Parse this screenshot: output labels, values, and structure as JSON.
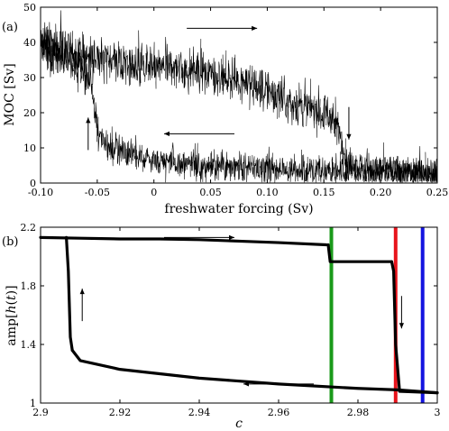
{
  "chart_data": [
    {
      "panel_label": "(a)",
      "type": "line",
      "xlabel": "freshwater forcing (Sv)",
      "ylabel": "MOC [Sv]",
      "xlim": [
        -0.1,
        0.25
      ],
      "ylim": [
        0,
        50
      ],
      "xticks": [
        -0.1,
        -0.05,
        0,
        0.05,
        0.1,
        0.15,
        0.2,
        0.25
      ],
      "xtick_labels": [
        "-0.10",
        "-0.05",
        "0",
        "0.05",
        "0.10",
        "0.15",
        "0.20",
        "0.25"
      ],
      "yticks": [
        0,
        10,
        20,
        30,
        40,
        50
      ],
      "ytick_labels": [
        "0",
        "10",
        "20",
        "30",
        "40",
        "50"
      ],
      "grid": false,
      "series": [
        {
          "x": [
            -0.1,
            -0.08,
            -0.06,
            -0.04,
            -0.02,
            0,
            0.02,
            0.04,
            0.06,
            0.08,
            0.09,
            0.1,
            0.11,
            0.12,
            0.13,
            0.14,
            0.15,
            0.16,
            0.165
          ],
          "y": [
            40,
            37.5,
            36,
            35,
            33.5,
            33,
            32.5,
            31.5,
            30.5,
            29,
            27.5,
            26,
            24.5,
            23,
            22,
            21,
            20,
            18,
            13
          ]
        },
        {
          "x": [
            0.165,
            0.17,
            0.18,
            0.2,
            0.22,
            0.25
          ],
          "y": [
            13,
            6,
            4.5,
            3.8,
            3.2,
            2.5
          ]
        },
        {
          "x": [
            0.25,
            0.2,
            0.15,
            0.1,
            0.05,
            0,
            -0.02,
            -0.04,
            -0.05
          ],
          "y": [
            2.5,
            3,
            3.5,
            4,
            5,
            6.5,
            8,
            11,
            15
          ]
        },
        {
          "x": [
            -0.05,
            -0.052,
            -0.055,
            -0.06,
            -0.07,
            -0.08,
            -0.09,
            -0.1
          ],
          "y": [
            15,
            22,
            29,
            31,
            34,
            36,
            38,
            40
          ]
        }
      ],
      "annotations": [
        {
          "type": "arrow",
          "direction": "right",
          "x": 0.06,
          "y": 44
        },
        {
          "type": "arrow",
          "direction": "down",
          "x": 0.172,
          "y": 17
        },
        {
          "type": "arrow",
          "direction": "left",
          "x": 0.04,
          "y": 14
        },
        {
          "type": "arrow",
          "direction": "up",
          "x": -0.058,
          "y": 14
        }
      ]
    },
    {
      "panel_label": "(b)",
      "type": "line",
      "xlabel": "c",
      "ylabel_prefix": "amp[",
      "ylabel_var": "h",
      "ylabel_open": "(",
      "ylabel_arg": "t",
      "ylabel_close": ")]",
      "xlim": [
        2.9,
        3.0
      ],
      "ylim": [
        1.0,
        2.2
      ],
      "xticks": [
        2.9,
        2.92,
        2.94,
        2.96,
        2.98,
        3.0
      ],
      "xtick_labels": [
        "2.9",
        "2.92",
        "2.94",
        "2.96",
        "2.98",
        "3"
      ],
      "yticks": [
        1.0,
        1.4,
        1.8,
        2.2
      ],
      "ytick_labels": [
        "1",
        "1.4",
        "1.8",
        "2.2"
      ],
      "grid": false,
      "series": [
        {
          "x": [
            2.9,
            2.91,
            2.92,
            2.93,
            2.94,
            2.95,
            2.96,
            2.972
          ],
          "y": [
            2.13,
            2.125,
            2.12,
            2.12,
            2.115,
            2.105,
            2.095,
            2.08
          ]
        },
        {
          "x": [
            2.9725,
            2.973,
            2.98,
            2.985,
            2.9885
          ],
          "y": [
            2.08,
            1.965,
            1.965,
            1.965,
            1.965
          ]
        },
        {
          "x": [
            2.9885,
            2.989,
            2.9895,
            2.9905,
            2.995,
            3.0
          ],
          "y": [
            1.965,
            1.9,
            1.4,
            1.08,
            1.075,
            1.07
          ]
        },
        {
          "x": [
            3.0,
            2.99,
            2.98,
            2.96,
            2.94,
            2.92,
            2.91,
            2.908
          ],
          "y": [
            1.07,
            1.09,
            1.1,
            1.13,
            1.17,
            1.23,
            1.29,
            1.36
          ]
        },
        {
          "x": [
            2.908,
            2.9075,
            2.907,
            2.9065
          ],
          "y": [
            1.36,
            1.45,
            1.9,
            2.13
          ]
        }
      ],
      "vertical_lines": [
        {
          "x": 2.9733,
          "color": "#1a9a1a"
        },
        {
          "x": 2.9895,
          "color": "#e8141c"
        },
        {
          "x": 2.9963,
          "color": "#1414e0"
        }
      ],
      "annotations": [
        {
          "type": "arrow",
          "direction": "right",
          "x": 2.94,
          "y": 2.13
        },
        {
          "type": "arrow",
          "direction": "down",
          "x": 2.991,
          "y": 1.62
        },
        {
          "type": "arrow",
          "direction": "left",
          "x": 2.96,
          "y": 1.13
        },
        {
          "type": "arrow",
          "direction": "up",
          "x": 2.9105,
          "y": 1.67
        }
      ]
    }
  ]
}
